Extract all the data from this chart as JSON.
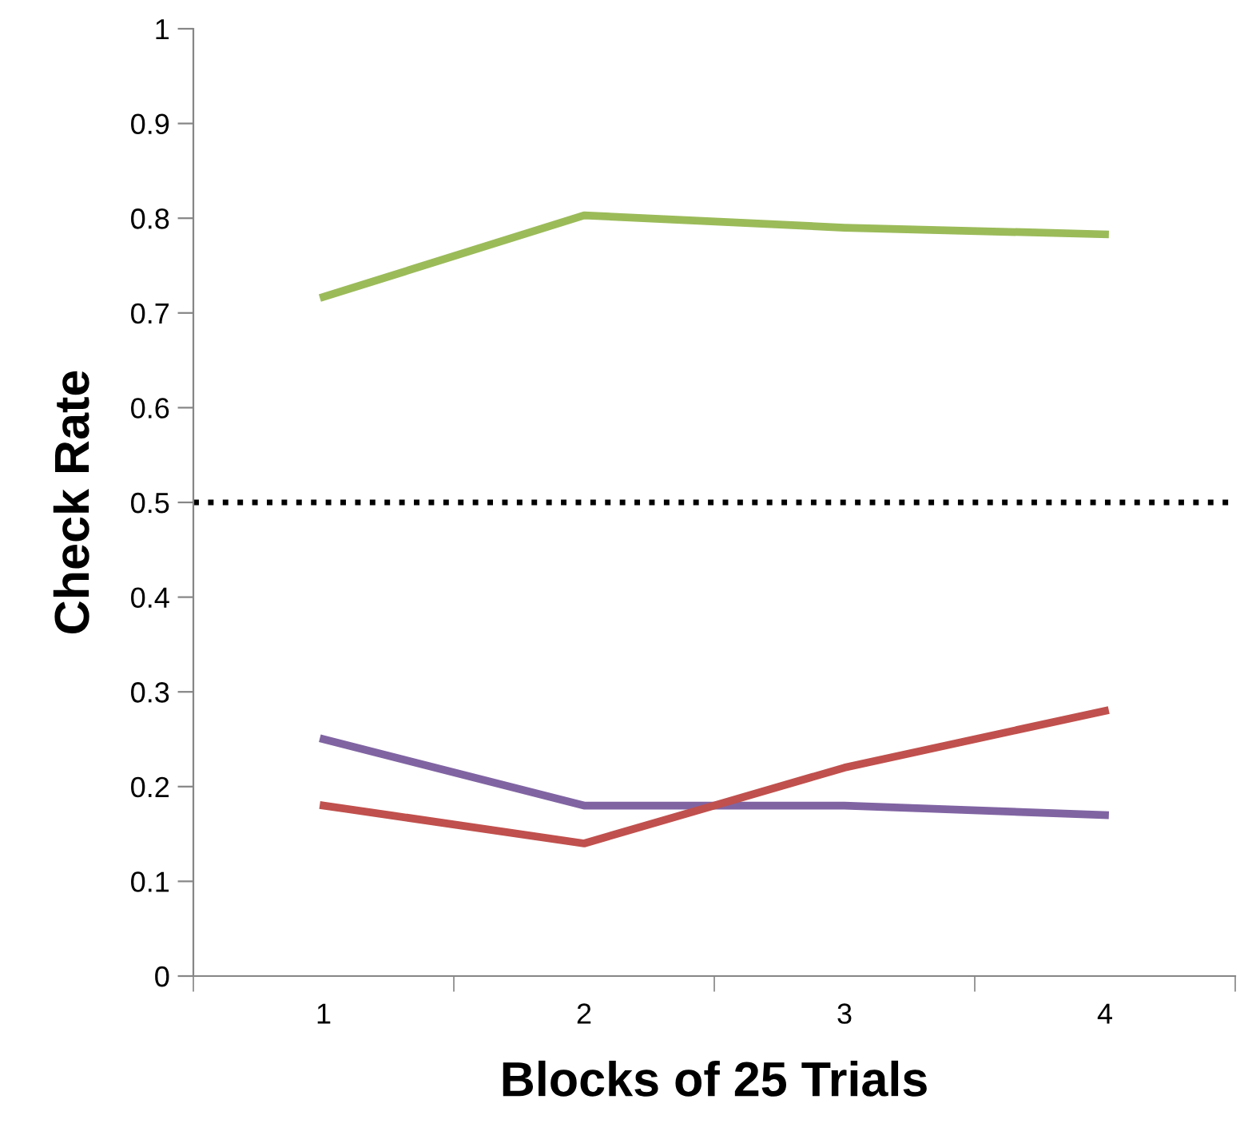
{
  "chart_data": {
    "type": "line",
    "xlabel": "Blocks of 25 Trials",
    "ylabel": "Check Rate",
    "categories": [
      "1",
      "2",
      "3",
      "4"
    ],
    "series": [
      {
        "color": "#9bbb59",
        "values": [
          0.717,
          0.803,
          0.79,
          0.783
        ]
      },
      {
        "color": "#8064a2",
        "values": [
          0.25,
          0.18,
          0.18,
          0.17
        ]
      },
      {
        "color": "#c0504d",
        "values": [
          0.18,
          0.14,
          0.22,
          0.28
        ]
      }
    ],
    "ylim": [
      0,
      1
    ],
    "yticks": [
      0,
      0.1,
      0.2,
      0.3,
      0.4,
      0.5,
      0.6,
      0.7,
      0.8,
      0.9,
      1
    ],
    "ref_lines": [
      {
        "axis": "y",
        "value": 0.5,
        "color": "#000000",
        "line_style": "dotted"
      }
    ],
    "grid": false,
    "legend": false,
    "marker": "none",
    "line_style": "solid"
  }
}
